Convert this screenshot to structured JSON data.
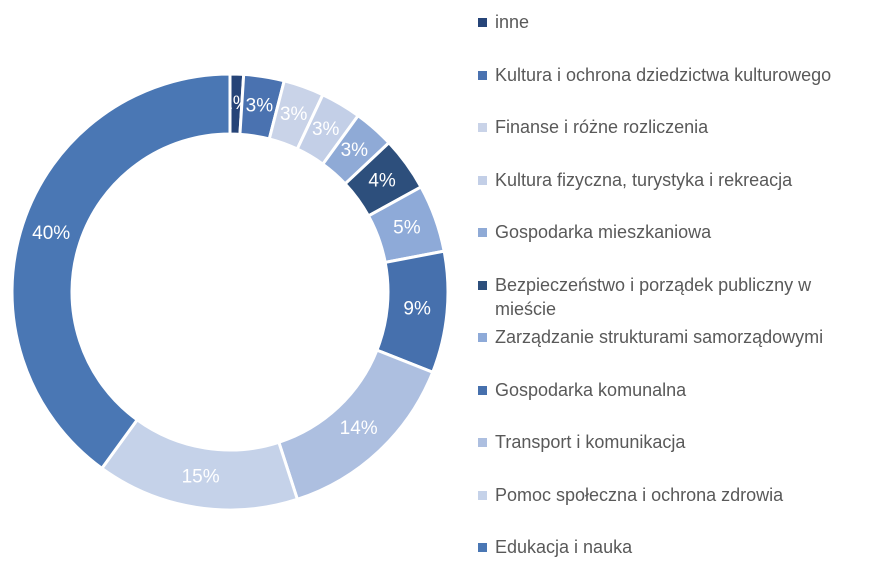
{
  "chart_data": {
    "type": "donut",
    "categories": [
      "inne",
      "Kultura i ochrona dziedzictwa kulturowego",
      "Finanse i różne rozliczenia",
      "Kultura fizyczna, turystyka i rekreacja",
      "Gospodarka mieszkaniowa",
      "Bezpieczeństwo i porządek publiczny w mieście",
      "Zarządzanie strukturami samorządowymi",
      "Gospodarka komunalna",
      "Transport i komunikacja",
      "Pomoc społeczna i ochrona zdrowia",
      "Edukacja i nauka"
    ],
    "values": [
      1,
      3,
      3,
      3,
      3,
      4,
      5,
      9,
      14,
      15,
      40
    ],
    "value_labels": [
      "1%",
      "3%",
      "3%",
      "3%",
      "3%",
      "4%",
      "5%",
      "9%",
      "14%",
      "15%",
      "40%"
    ],
    "colors": [
      "#264478",
      "#4a72b0",
      "#c9d3e8",
      "#c3cfe7",
      "#8faad6",
      "#2d4f7c",
      "#8eaad8",
      "#4670ad",
      "#adbfe0",
      "#c5d2e9",
      "#4a77b4"
    ],
    "legend": "right"
  }
}
